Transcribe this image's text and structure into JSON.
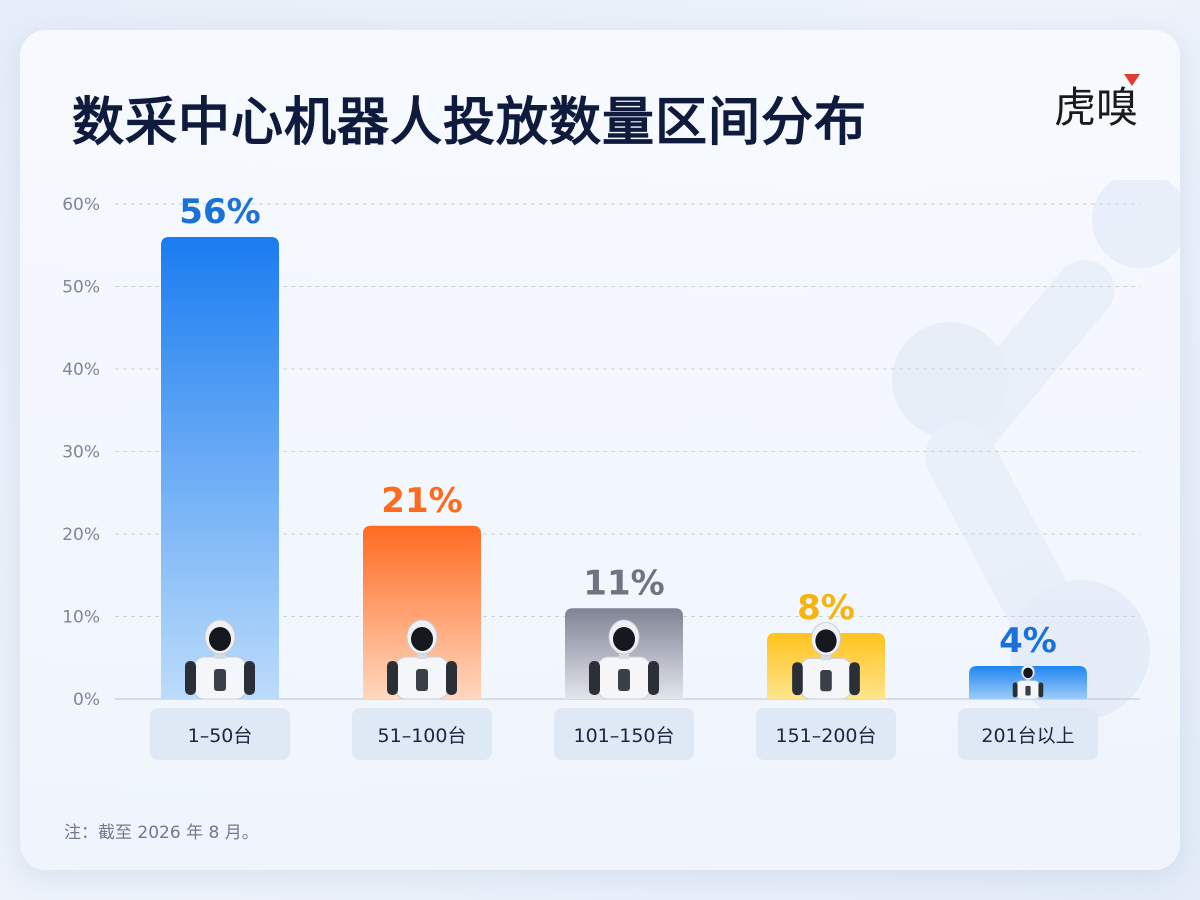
{
  "title": "数采中心机器人投放数量区间分布",
  "logo_text": "虎嗅",
  "note": "注：截至 2026 年 8 月。",
  "chart_data": {
    "type": "bar",
    "title": "数采中心机器人投放数量区间分布",
    "xlabel": "",
    "ylabel": "",
    "categories": [
      "1–50台",
      "51–100台",
      "101–150台",
      "151–200台",
      "201台以上"
    ],
    "values": [
      56,
      21,
      11,
      8,
      4
    ],
    "value_labels": [
      "56%",
      "21%",
      "11%",
      "8%",
      "4%"
    ],
    "ylim": [
      0,
      60
    ],
    "yticks": [
      0,
      10,
      20,
      30,
      40,
      50,
      60
    ],
    "ytick_labels": [
      "0%",
      "10%",
      "20%",
      "30%",
      "40%",
      "50%",
      "60%"
    ],
    "grid": true,
    "bar_colors": [
      {
        "top": "#1a7cf0",
        "bottom": "#bcdcfb",
        "label": "#1a72d9"
      },
      {
        "top": "#ff6a22",
        "bottom": "#ffd8bf",
        "label": "#ff6a1e"
      },
      {
        "top": "#7f8394",
        "bottom": "#e3e5ec",
        "label": "#707383"
      },
      {
        "top": "#ffc21c",
        "bottom": "#ffe58d",
        "label": "#f5b40f"
      },
      {
        "top": "#1f86f2",
        "bottom": "#9ccbf8",
        "label": "#1a72d9"
      }
    ],
    "robot_icon": "humanoid-robot-icon"
  }
}
